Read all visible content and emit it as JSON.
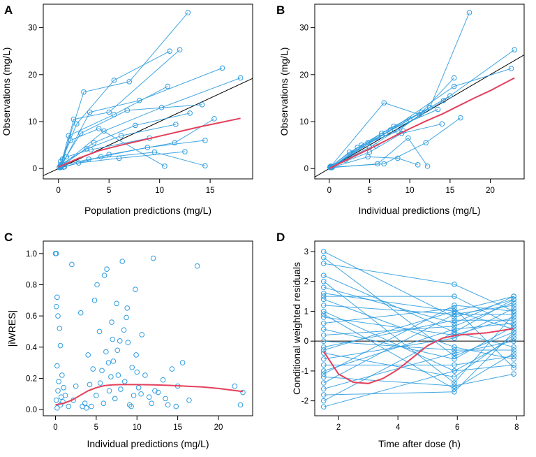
{
  "colors": {
    "data": "#2f9de0",
    "smooth": "#e4405c",
    "reference": "#000000"
  },
  "chart_data": [
    {
      "panel": "A",
      "type": "scatter",
      "xlabel": "Population predictions (mg/L)",
      "ylabel": "Observations (mg/L)",
      "xlim": [
        -1.5,
        19.2
      ],
      "ylim": [
        -2.2,
        35
      ],
      "xticks": [
        0,
        5,
        10,
        15
      ],
      "yticks": [
        0,
        10,
        20,
        30
      ],
      "reference_line": "identity",
      "subjects": [
        {
          "x": [
            0.2,
            2.5,
            7.0,
            12.8
          ],
          "y": [
            0.5,
            16.3,
            18.5,
            33.2
          ]
        },
        {
          "x": [
            0.1,
            1.8,
            5.5,
            11.0
          ],
          "y": [
            0.3,
            9.5,
            18.8,
            25.0
          ]
        },
        {
          "x": [
            0.3,
            3.1,
            8.0,
            16.2
          ],
          "y": [
            0.6,
            12.0,
            14.5,
            21.4
          ]
        },
        {
          "x": [
            0.2,
            4.5,
            10.2,
            18.0
          ],
          "y": [
            0.4,
            8.0,
            13.0,
            19.3
          ]
        },
        {
          "x": [
            0.1,
            2.2,
            6.8,
            14.2
          ],
          "y": [
            0.2,
            7.5,
            12.4,
            13.6
          ]
        },
        {
          "x": [
            0.4,
            1.5,
            5.0,
            12.0
          ],
          "y": [
            1.0,
            10.5,
            12.0,
            25.3
          ]
        },
        {
          "x": [
            0.3,
            3.5,
            7.6,
            13.0
          ],
          "y": [
            0.5,
            5.5,
            9.2,
            11.8
          ]
        },
        {
          "x": [
            0.2,
            2.8,
            6.2,
            11.6
          ],
          "y": [
            0.8,
            4.2,
            7.0,
            9.4
          ]
        },
        {
          "x": [
            0.5,
            4.2,
            8.8,
            14.5
          ],
          "y": [
            0.3,
            2.5,
            4.5,
            6.0
          ]
        },
        {
          "x": [
            0.3,
            3.0,
            9.5,
            14.5
          ],
          "y": [
            0.6,
            2.0,
            3.5,
            0.6
          ]
        },
        {
          "x": [
            0.2,
            1.2,
            4.0,
            10.5
          ],
          "y": [
            1.5,
            6.0,
            8.5,
            0.5
          ]
        },
        {
          "x": [
            0.6,
            5.0,
            11.5,
            15.4
          ],
          "y": [
            0.4,
            3.0,
            5.5,
            10.6
          ]
        },
        {
          "x": [
            0.1,
            0.8,
            3.2,
            9.0
          ],
          "y": [
            0.3,
            2.5,
            4.0,
            6.5
          ]
        },
        {
          "x": [
            0.2,
            2.0,
            6.0,
            12.5
          ],
          "y": [
            0.2,
            1.2,
            2.2,
            3.6
          ]
        },
        {
          "x": [
            0.4,
            1.0,
            5.5,
            10.8
          ],
          "y": [
            2.0,
            7.0,
            11.5,
            17.5
          ]
        }
      ],
      "loess": {
        "x": [
          0,
          2,
          4,
          6,
          8,
          10,
          12,
          14,
          16,
          18
        ],
        "y": [
          0.3,
          2.2,
          3.8,
          4.9,
          5.9,
          6.9,
          7.9,
          8.9,
          9.8,
          10.7
        ]
      }
    },
    {
      "panel": "B",
      "type": "scatter",
      "xlabel": "Individual predictions (mg/L)",
      "ylabel": "Observations (mg/L)",
      "xlim": [
        -1.8,
        24.2
      ],
      "ylim": [
        -2.2,
        35
      ],
      "xticks": [
        0,
        5,
        10,
        15,
        20
      ],
      "yticks": [
        0,
        10,
        20,
        30
      ],
      "reference_line": "identity",
      "subjects": [
        {
          "x": [
            0.2,
            6.5,
            12.5,
            17.4
          ],
          "y": [
            0.3,
            7.5,
            13.0,
            33.2
          ]
        },
        {
          "x": [
            0.3,
            5.0,
            14.2,
            23.0
          ],
          "y": [
            0.4,
            4.5,
            14.5,
            25.3
          ]
        },
        {
          "x": [
            0.1,
            7.0,
            15.5,
            22.6
          ],
          "y": [
            0.2,
            7.5,
            17.5,
            21.3
          ]
        },
        {
          "x": [
            0.2,
            6.8,
            12.0,
            16.3
          ],
          "y": [
            0.3,
            1.0,
            5.5,
            10.8
          ]
        },
        {
          "x": [
            0.2,
            4.8,
            10.0,
            15.0
          ],
          "y": [
            0.3,
            5.5,
            10.5,
            15.5
          ]
        },
        {
          "x": [
            0.1,
            3.5,
            8.5,
            12.5
          ],
          "y": [
            0.4,
            4.5,
            8.0,
            13.0
          ]
        },
        {
          "x": [
            0.3,
            6.0,
            9.8,
            12.2
          ],
          "y": [
            0.2,
            1.0,
            6.5,
            0.5
          ]
        },
        {
          "x": [
            0.2,
            2.5,
            6.5,
            10.0
          ],
          "y": [
            0.4,
            3.5,
            7.0,
            10.5
          ]
        },
        {
          "x": [
            0.1,
            5.0,
            9.0,
            14.0
          ],
          "y": [
            0.3,
            3.5,
            7.5,
            9.5
          ]
        },
        {
          "x": [
            0.2,
            6.8,
            11.2,
            15.5
          ],
          "y": [
            0.5,
            14.0,
            11.5,
            19.3
          ]
        },
        {
          "x": [
            0.3,
            4.0,
            8.0,
            11.5
          ],
          "y": [
            0.2,
            5.0,
            9.0,
            12.0
          ]
        },
        {
          "x": [
            0.2,
            2.0,
            5.8,
            9.2
          ],
          "y": [
            0.3,
            1.8,
            4.8,
            8.0
          ]
        },
        {
          "x": [
            0.4,
            4.8,
            8.5,
            11.0
          ],
          "y": [
            0.3,
            2.5,
            2.2,
            0.8
          ]
        },
        {
          "x": [
            0.1,
            3.0,
            7.6,
            13.5
          ],
          "y": [
            0.2,
            3.2,
            8.2,
            12.6
          ]
        }
      ],
      "loess": {
        "x": [
          0,
          2,
          5,
          8,
          10,
          12,
          14,
          16,
          18,
          20,
          23
        ],
        "y": [
          0,
          1.7,
          4.2,
          6.8,
          8.5,
          10.1,
          11.6,
          13.3,
          15.0,
          16.6,
          19.3
        ]
      }
    },
    {
      "panel": "C",
      "type": "scatter",
      "xlabel": "Individual predictions (mg/L)",
      "ylabel": "|iWRES|",
      "xlim": [
        -1.5,
        24.2
      ],
      "ylim": [
        -0.04,
        1.08
      ],
      "xticks": [
        0,
        5,
        10,
        15,
        20
      ],
      "yticks": [
        0.0,
        0.2,
        0.4,
        0.6,
        0.8,
        1.0
      ],
      "ytick_labels": [
        "0.0",
        "0.2",
        "0.4",
        "0.6",
        "0.8",
        "1.0"
      ],
      "points": {
        "x": [
          0.0,
          0.1,
          0.2,
          0.1,
          0.3,
          0.5,
          0.6,
          0.2,
          0.8,
          0.4,
          0.3,
          0.1,
          0.6,
          0.2,
          1.2,
          2.0,
          2.5,
          3.1,
          3.6,
          4.0,
          4.4,
          4.8,
          5.1,
          5.4,
          5.7,
          6.0,
          6.3,
          6.6,
          6.9,
          7.1,
          7.3,
          7.6,
          7.9,
          8.2,
          8.5,
          8.8,
          9.1,
          9.4,
          9.8,
          10.2,
          10.6,
          11.0,
          11.5,
          12.0,
          12.6,
          13.2,
          13.8,
          14.3,
          15.0,
          15.6,
          16.4,
          17.4,
          22.0,
          23.0,
          22.7,
          5.5,
          6.8,
          7.5,
          8.7,
          9.9,
          5.9,
          7.0,
          8.0,
          9.3,
          10.5,
          6.5,
          8.4,
          3.3,
          4.6,
          2.2,
          0.7,
          1.0,
          1.6,
          0.9,
          11.8,
          12.2,
          9.6,
          7.7,
          6.2,
          5.0,
          4.2,
          3.8,
          13.5,
          14.8,
          10.0,
          8.9
        ],
        "y": [
          1.0,
          1.0,
          0.72,
          0.66,
          0.6,
          0.52,
          0.41,
          0.28,
          0.22,
          0.18,
          0.12,
          0.06,
          0.03,
          0.01,
          0.09,
          0.93,
          0.15,
          0.62,
          0.04,
          0.35,
          0.02,
          0.7,
          0.8,
          0.5,
          0.25,
          0.86,
          0.9,
          0.12,
          0.56,
          0.31,
          0.07,
          0.38,
          0.44,
          0.95,
          0.18,
          0.65,
          0.03,
          0.27,
          0.77,
          0.14,
          0.48,
          0.22,
          0.08,
          0.97,
          0.11,
          0.19,
          0.03,
          0.26,
          0.15,
          0.3,
          0.06,
          0.92,
          0.15,
          0.11,
          0.03,
          0.17,
          0.21,
          0.68,
          0.59,
          0.35,
          0.04,
          0.45,
          0.13,
          0.02,
          0.1,
          0.3,
          0.51,
          0.02,
          0.26,
          0.06,
          0.08,
          0.14,
          0.02,
          0.05,
          0.04,
          0.12,
          0.09,
          0.22,
          0.37,
          0.09,
          0.16,
          0.01,
          0.07,
          0.02,
          0.24,
          0.43
        ]
      },
      "loess": {
        "x": [
          0,
          1,
          2,
          3,
          4,
          5,
          6,
          7,
          8,
          10,
          12,
          14,
          16,
          18,
          20,
          23
        ],
        "y": [
          0.03,
          0.04,
          0.06,
          0.09,
          0.12,
          0.14,
          0.153,
          0.158,
          0.16,
          0.16,
          0.158,
          0.155,
          0.15,
          0.145,
          0.135,
          0.115
        ]
      }
    },
    {
      "panel": "D",
      "type": "scatter",
      "xlabel": "Time after dose (h)",
      "ylabel": "Conditional weighted residuals",
      "xlim": [
        1.2,
        8.25
      ],
      "ylim": [
        -2.5,
        3.35
      ],
      "xticks": [
        2,
        4,
        6,
        8
      ],
      "yticks": [
        -2,
        -1,
        0,
        1,
        2,
        3
      ],
      "reference_line": "zero",
      "times": [
        1.5,
        5.9,
        7.9
      ],
      "subjects": [
        [
          3.0,
          0.8,
          1.4
        ],
        [
          2.8,
          -0.5,
          0.3
        ],
        [
          2.6,
          1.9,
          1.0
        ],
        [
          2.2,
          0.3,
          -0.2
        ],
        [
          2.0,
          -1.4,
          0.9
        ],
        [
          1.8,
          0.6,
          1.5
        ],
        [
          1.6,
          1.0,
          0.4
        ],
        [
          1.4,
          -0.2,
          -0.6
        ],
        [
          1.2,
          0.9,
          1.2
        ],
        [
          1.0,
          -1.0,
          0.1
        ],
        [
          0.8,
          0.2,
          0.8
        ],
        [
          0.6,
          1.1,
          -0.9
        ],
        [
          0.4,
          -0.6,
          0.5
        ],
        [
          0.2,
          0.5,
          1.3
        ],
        [
          0.0,
          -0.3,
          -0.3
        ],
        [
          -0.2,
          0.7,
          0.7
        ],
        [
          -0.4,
          -1.2,
          0.2
        ],
        [
          -0.6,
          0.1,
          1.1
        ],
        [
          -0.8,
          -0.8,
          -0.5
        ],
        [
          -1.0,
          0.4,
          0.6
        ],
        [
          -1.2,
          -1.5,
          -1.1
        ],
        [
          -1.4,
          0.9,
          0.9
        ],
        [
          -1.6,
          -0.4,
          0.0
        ],
        [
          -1.8,
          -1.7,
          0.3
        ],
        [
          -2.0,
          0.3,
          1.4
        ],
        [
          -2.2,
          -1.0,
          -0.8
        ],
        [
          1.5,
          1.5,
          0.5
        ],
        [
          -1.1,
          1.2,
          1.0
        ],
        [
          0.9,
          -1.6,
          -0.4
        ],
        [
          -0.3,
          1.0,
          1.5
        ]
      ],
      "loess": {
        "x": [
          1.5,
          2.0,
          2.5,
          3.0,
          3.5,
          4.0,
          4.5,
          5.0,
          5.5,
          6.0,
          7.0,
          7.9
        ],
        "y": [
          -0.35,
          -1.1,
          -1.38,
          -1.42,
          -1.25,
          -0.95,
          -0.55,
          -0.15,
          0.1,
          0.2,
          0.28,
          0.42
        ]
      }
    }
  ]
}
